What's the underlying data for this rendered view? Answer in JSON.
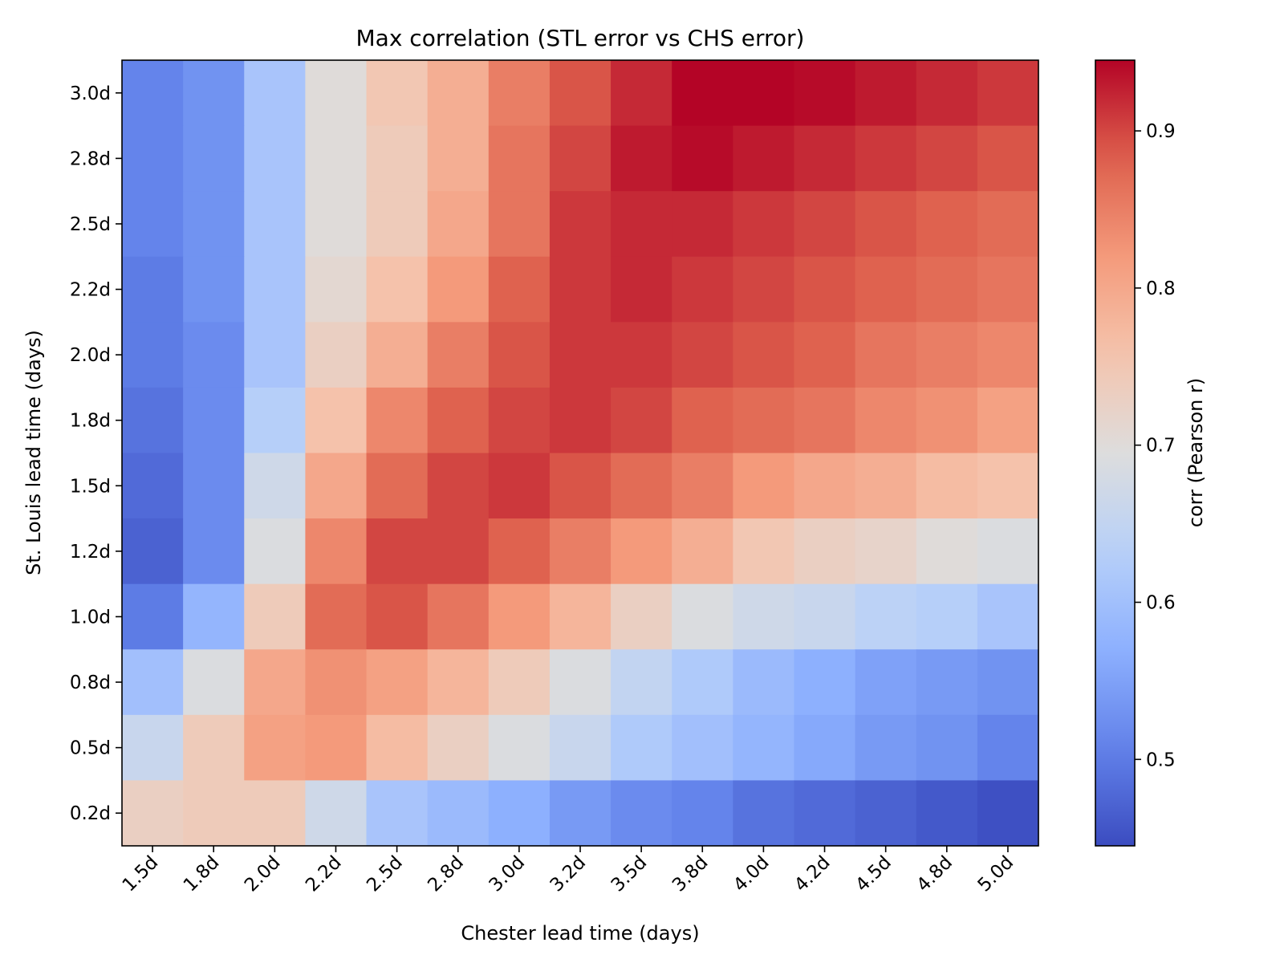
{
  "chart_data": {
    "type": "heatmap",
    "title": "Max correlation (STL error vs CHS error)",
    "xlabel": "Chester lead time (days)",
    "ylabel": "St. Louis lead time (days)",
    "x_categories": [
      "1.5d",
      "1.8d",
      "2.0d",
      "2.2d",
      "2.5d",
      "2.8d",
      "3.0d",
      "3.2d",
      "3.5d",
      "3.8d",
      "4.0d",
      "4.2d",
      "4.5d",
      "4.8d",
      "5.0d"
    ],
    "y_categories": [
      "3.0d",
      "2.8d",
      "2.5d",
      "2.2d",
      "2.0d",
      "1.8d",
      "1.5d",
      "1.2d",
      "1.0d",
      "0.8d",
      "0.5d",
      "0.2d"
    ],
    "values": [
      [
        0.51,
        0.53,
        0.61,
        0.7,
        0.75,
        0.79,
        0.85,
        0.89,
        0.92,
        0.95,
        0.95,
        0.94,
        0.93,
        0.92,
        0.91
      ],
      [
        0.51,
        0.53,
        0.61,
        0.7,
        0.74,
        0.79,
        0.86,
        0.9,
        0.93,
        0.94,
        0.93,
        0.92,
        0.91,
        0.9,
        0.89
      ],
      [
        0.51,
        0.53,
        0.61,
        0.7,
        0.74,
        0.8,
        0.86,
        0.91,
        0.92,
        0.92,
        0.91,
        0.9,
        0.89,
        0.88,
        0.87
      ],
      [
        0.5,
        0.53,
        0.61,
        0.71,
        0.76,
        0.82,
        0.88,
        0.91,
        0.92,
        0.91,
        0.9,
        0.89,
        0.88,
        0.87,
        0.86
      ],
      [
        0.5,
        0.52,
        0.61,
        0.73,
        0.79,
        0.85,
        0.89,
        0.91,
        0.91,
        0.9,
        0.89,
        0.88,
        0.86,
        0.85,
        0.84
      ],
      [
        0.49,
        0.52,
        0.63,
        0.76,
        0.84,
        0.88,
        0.9,
        0.91,
        0.9,
        0.88,
        0.87,
        0.86,
        0.84,
        0.83,
        0.81
      ],
      [
        0.48,
        0.52,
        0.67,
        0.8,
        0.87,
        0.9,
        0.91,
        0.89,
        0.87,
        0.85,
        0.82,
        0.8,
        0.79,
        0.77,
        0.76
      ],
      [
        0.47,
        0.52,
        0.69,
        0.84,
        0.9,
        0.9,
        0.88,
        0.85,
        0.82,
        0.79,
        0.75,
        0.73,
        0.72,
        0.7,
        0.69
      ],
      [
        0.5,
        0.58,
        0.74,
        0.87,
        0.89,
        0.86,
        0.82,
        0.78,
        0.73,
        0.69,
        0.67,
        0.66,
        0.64,
        0.63,
        0.61
      ],
      [
        0.6,
        0.69,
        0.8,
        0.83,
        0.81,
        0.78,
        0.74,
        0.69,
        0.65,
        0.62,
        0.59,
        0.57,
        0.55,
        0.54,
        0.53
      ],
      [
        0.66,
        0.74,
        0.81,
        0.82,
        0.77,
        0.73,
        0.69,
        0.66,
        0.62,
        0.6,
        0.58,
        0.56,
        0.54,
        0.53,
        0.51
      ],
      [
        0.73,
        0.74,
        0.74,
        0.67,
        0.61,
        0.59,
        0.57,
        0.54,
        0.52,
        0.51,
        0.49,
        0.48,
        0.47,
        0.46,
        0.45
      ]
    ],
    "colorbar": {
      "label": "corr (Pearson r)",
      "vmin": 0.445,
      "vmax": 0.945,
      "ticks": [
        0.5,
        0.6,
        0.7,
        0.8,
        0.9
      ],
      "tick_labels": [
        "0.5",
        "0.6",
        "0.7",
        "0.8",
        "0.9"
      ],
      "colormap": "coolwarm"
    }
  }
}
